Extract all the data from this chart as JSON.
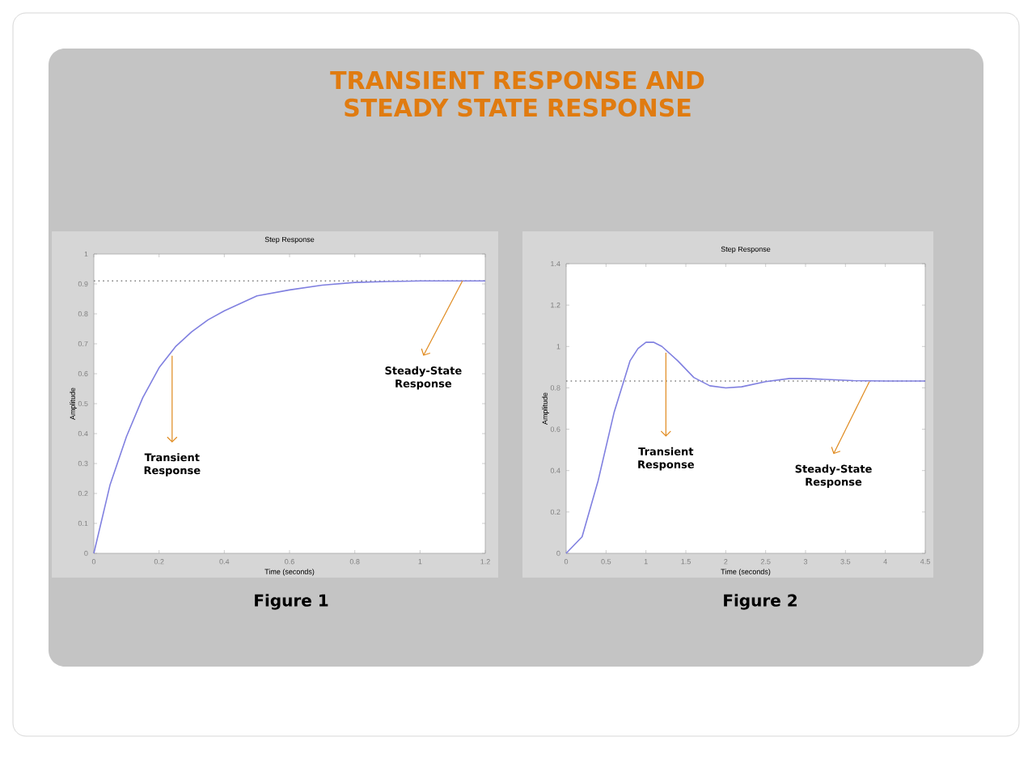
{
  "chart_data": [
    {
      "type": "line",
      "title": "Step Response",
      "xlabel": "Time (seconds)",
      "ylabel": "Amplitude",
      "x": [
        0,
        0.05,
        0.1,
        0.15,
        0.2,
        0.25,
        0.3,
        0.35,
        0.4,
        0.5,
        0.6,
        0.7,
        0.8,
        0.9,
        1.0,
        1.1,
        1.2
      ],
      "series": [
        {
          "color": "#8080e0",
          "values": [
            0,
            0.23,
            0.39,
            0.52,
            0.62,
            0.69,
            0.74,
            0.78,
            0.81,
            0.86,
            0.88,
            0.896,
            0.905,
            0.908,
            0.91,
            0.91,
            0.91
          ]
        }
      ],
      "xlim": [
        0,
        1.2
      ],
      "ylim": [
        0,
        1
      ],
      "xticks": [
        0,
        0.2,
        0.4,
        0.6,
        0.8,
        1,
        1.2
      ],
      "yticks": [
        0,
        0.1,
        0.2,
        0.3,
        0.4,
        0.5,
        0.6,
        0.7,
        0.8,
        0.9,
        1
      ],
      "ref_lines": [
        {
          "axis": "y",
          "value": 0.91,
          "color": "#808080",
          "line_style": "dotted"
        }
      ],
      "annotations": [
        "TRANSIENT RESPONSE AND STEADY STATE RESPONSE",
        "Figure 1",
        {
          "text": "Transient Response",
          "x": 0.24,
          "y": 0.66
        },
        {
          "text": "Steady-State Response",
          "x": 1.13,
          "y": 0.91
        }
      ]
    },
    {
      "type": "line",
      "title": "Step Response",
      "xlabel": "Time (seconds)",
      "ylabel": "Amplitude",
      "x": [
        0,
        0.2,
        0.4,
        0.6,
        0.8,
        0.9,
        1.0,
        1.1,
        1.2,
        1.4,
        1.6,
        1.8,
        2.0,
        2.2,
        2.5,
        2.8,
        3.0,
        3.3,
        3.6,
        4.0,
        4.5
      ],
      "series": [
        {
          "color": "#8080e0",
          "values": [
            0,
            0.08,
            0.35,
            0.68,
            0.93,
            0.99,
            1.02,
            1.02,
            1.0,
            0.93,
            0.85,
            0.81,
            0.8,
            0.805,
            0.83,
            0.845,
            0.845,
            0.84,
            0.835,
            0.833,
            0.833
          ]
        }
      ],
      "xlim": [
        0,
        4.5
      ],
      "ylim": [
        0,
        1.4
      ],
      "xticks": [
        0,
        0.5,
        1,
        1.5,
        2,
        2.5,
        3,
        3.5,
        4,
        4.5
      ],
      "yticks": [
        0,
        0.2,
        0.4,
        0.6,
        0.8,
        1,
        1.2,
        1.4
      ],
      "ref_lines": [
        {
          "axis": "y",
          "value": 0.833,
          "color": "#808080",
          "line_style": "dotted"
        }
      ],
      "annotations": [
        "Figure 2",
        {
          "text": "Transient Response",
          "x": 1.25,
          "y": 0.97
        },
        {
          "text": "Steady-State Response",
          "x": 3.8,
          "y": 0.83
        }
      ]
    }
  ]
}
